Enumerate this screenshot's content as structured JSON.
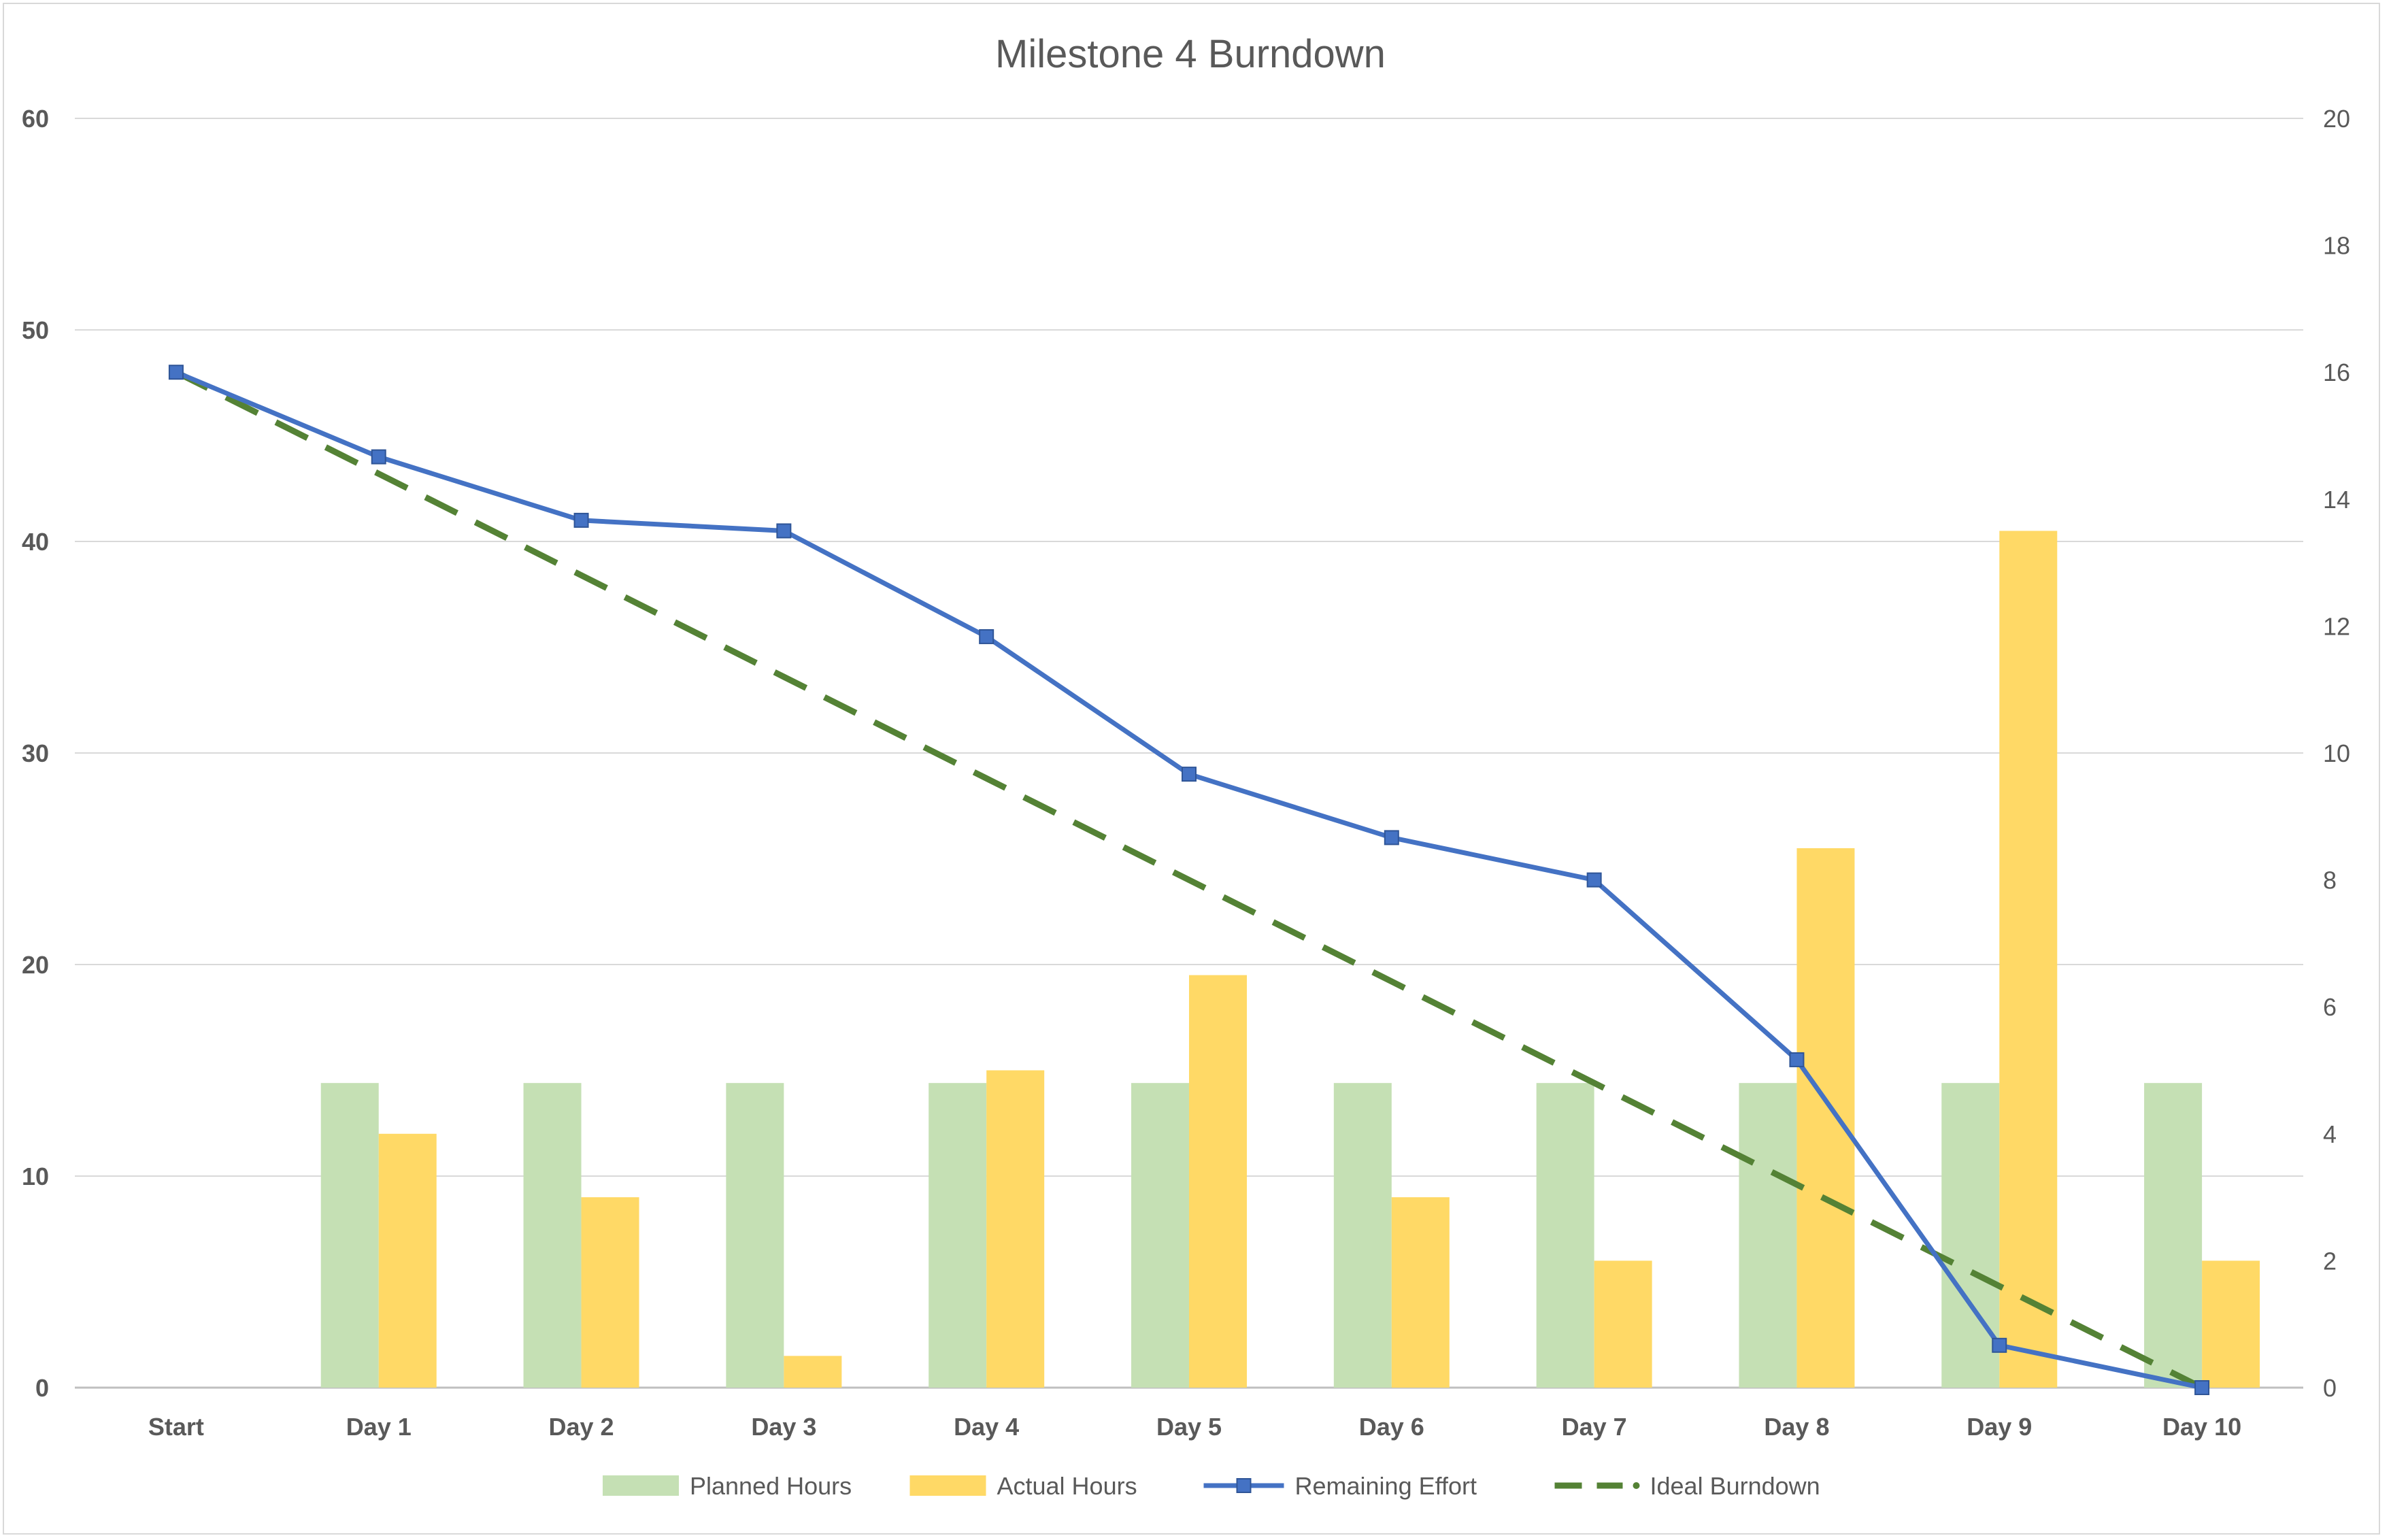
{
  "chart_data": {
    "type": "bar",
    "title": "Milestone 4 Burndown",
    "categories": [
      "Start",
      "Day  1",
      "Day  2",
      "Day  3",
      "Day 4",
      "Day 5",
      "Day 6",
      "Day  7",
      "Day  8",
      "Day  9",
      "Day  10"
    ],
    "y_left": {
      "min": 0,
      "max": 60,
      "ticks": [
        "0",
        "10",
        "20",
        "30",
        "40",
        "50",
        "60"
      ]
    },
    "y_right": {
      "min": 0,
      "max": 20,
      "ticks": [
        "0",
        "2",
        "4",
        "6",
        "8",
        "10",
        "12",
        "14",
        "16",
        "18",
        "20"
      ]
    },
    "grid": true,
    "legend_position": "bottom",
    "series": [
      {
        "name": "Planned Hours",
        "kind": "bar",
        "axis": "right",
        "color": "#c5e0b4",
        "values": [
          null,
          4.8,
          4.8,
          4.8,
          4.8,
          4.8,
          4.8,
          4.8,
          4.8,
          4.8,
          4.8
        ]
      },
      {
        "name": "Actual Hours",
        "kind": "bar",
        "axis": "right",
        "color": "#ffd966",
        "values": [
          null,
          4,
          3,
          0.5,
          5,
          6.5,
          3,
          2,
          8.5,
          13.5,
          2
        ]
      },
      {
        "name": "Remaining Effort",
        "kind": "line",
        "axis": "left",
        "color": "#4472c4",
        "marker": "square",
        "values": [
          48,
          44,
          41,
          40.5,
          35.5,
          29,
          26,
          24,
          15.5,
          2,
          0
        ]
      },
      {
        "name": "Ideal Burndown",
        "kind": "line",
        "axis": "left",
        "color": "#548235",
        "dash": "dashed",
        "values": [
          48,
          43.2,
          38.4,
          33.6,
          28.8,
          24,
          19.2,
          14.4,
          9.6,
          4.8,
          0
        ]
      }
    ]
  }
}
